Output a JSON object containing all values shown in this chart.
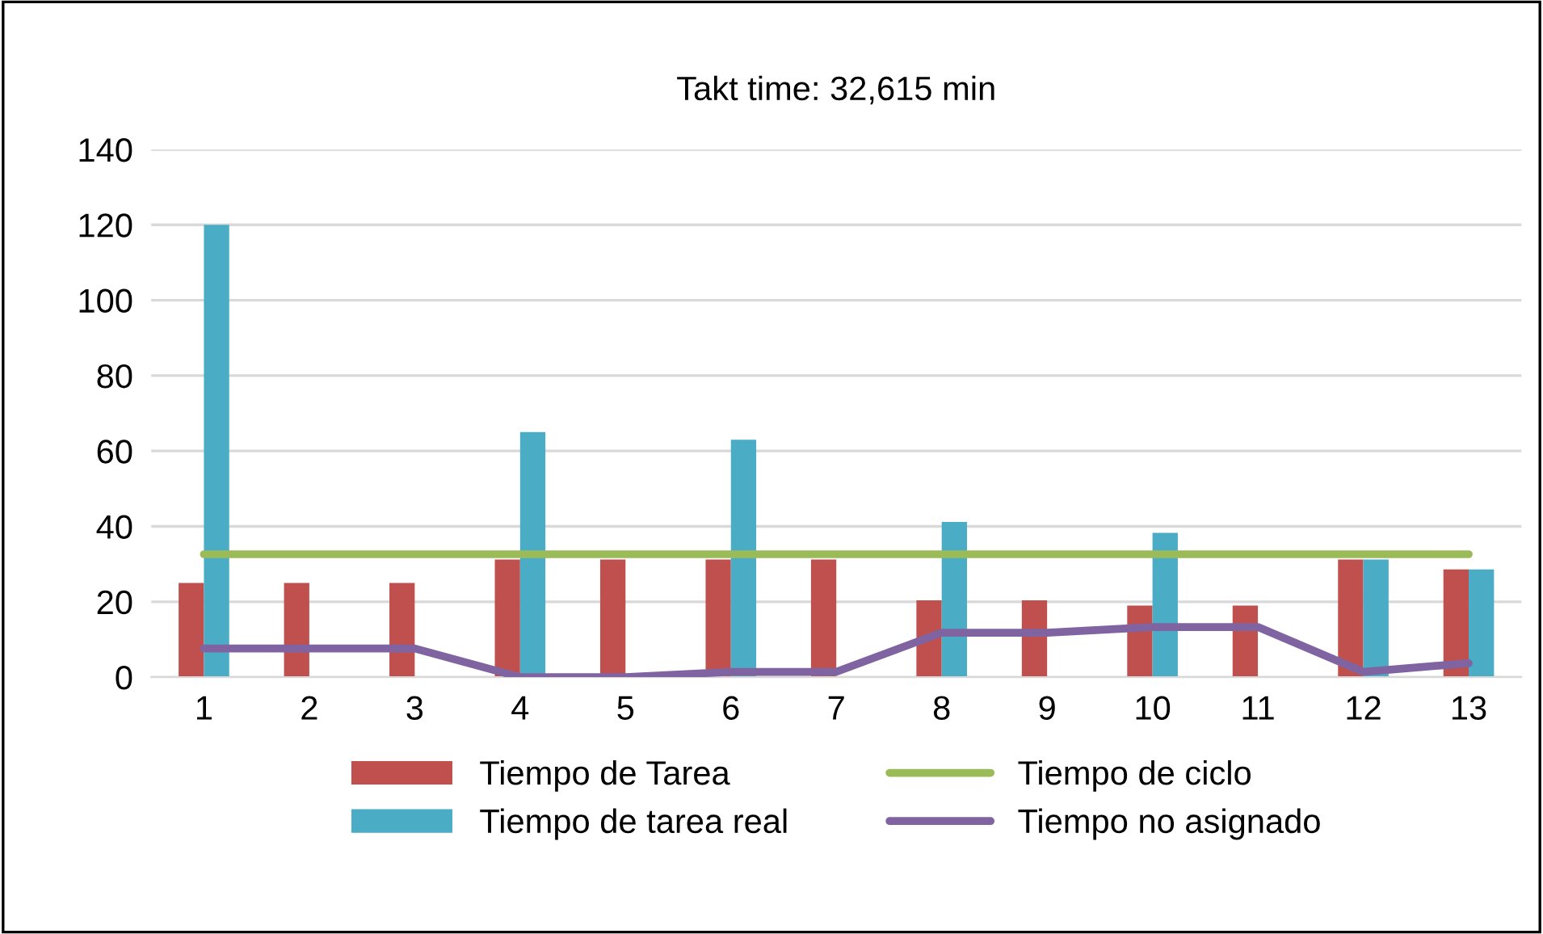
{
  "chart_data": {
    "type": "bar",
    "title": "Takt time: 32,615 min",
    "categories": [
      "1",
      "2",
      "3",
      "4",
      "5",
      "6",
      "7",
      "8",
      "9",
      "10",
      "11",
      "12",
      "13"
    ],
    "series": [
      {
        "name": "Tiempo de Tarea",
        "color": "#c0504d",
        "values": [
          25,
          25,
          25,
          31.2,
          31.2,
          31.2,
          31.2,
          20.4,
          20.4,
          19,
          19,
          31.2,
          28.6
        ]
      },
      {
        "name": "Tiempo de tarea real",
        "color": "#4bacc6",
        "values": [
          120,
          null,
          null,
          65,
          null,
          63,
          null,
          41.2,
          null,
          38.3,
          null,
          31.2,
          28.6
        ]
      },
      {
        "name": "Tiempo de ciclo",
        "type": "line",
        "color": "#9bbb59",
        "values": [
          32.6,
          32.6,
          32.6,
          32.6,
          32.6,
          32.6,
          32.6,
          32.6,
          32.6,
          32.6,
          32.6,
          32.6,
          32.6
        ]
      },
      {
        "name": "Tiempo no asignado",
        "type": "line",
        "color": "#8064a2",
        "values": [
          7.6,
          7.6,
          7.6,
          0,
          0,
          1.4,
          1.4,
          11.8,
          11.8,
          13.3,
          13.3,
          1.4,
          3.7
        ]
      }
    ],
    "ylim": [
      0,
      140
    ],
    "yticks": [
      0,
      20,
      40,
      60,
      80,
      100,
      120,
      140
    ],
    "grid": "y",
    "legend": "bottom",
    "marker": "none"
  }
}
